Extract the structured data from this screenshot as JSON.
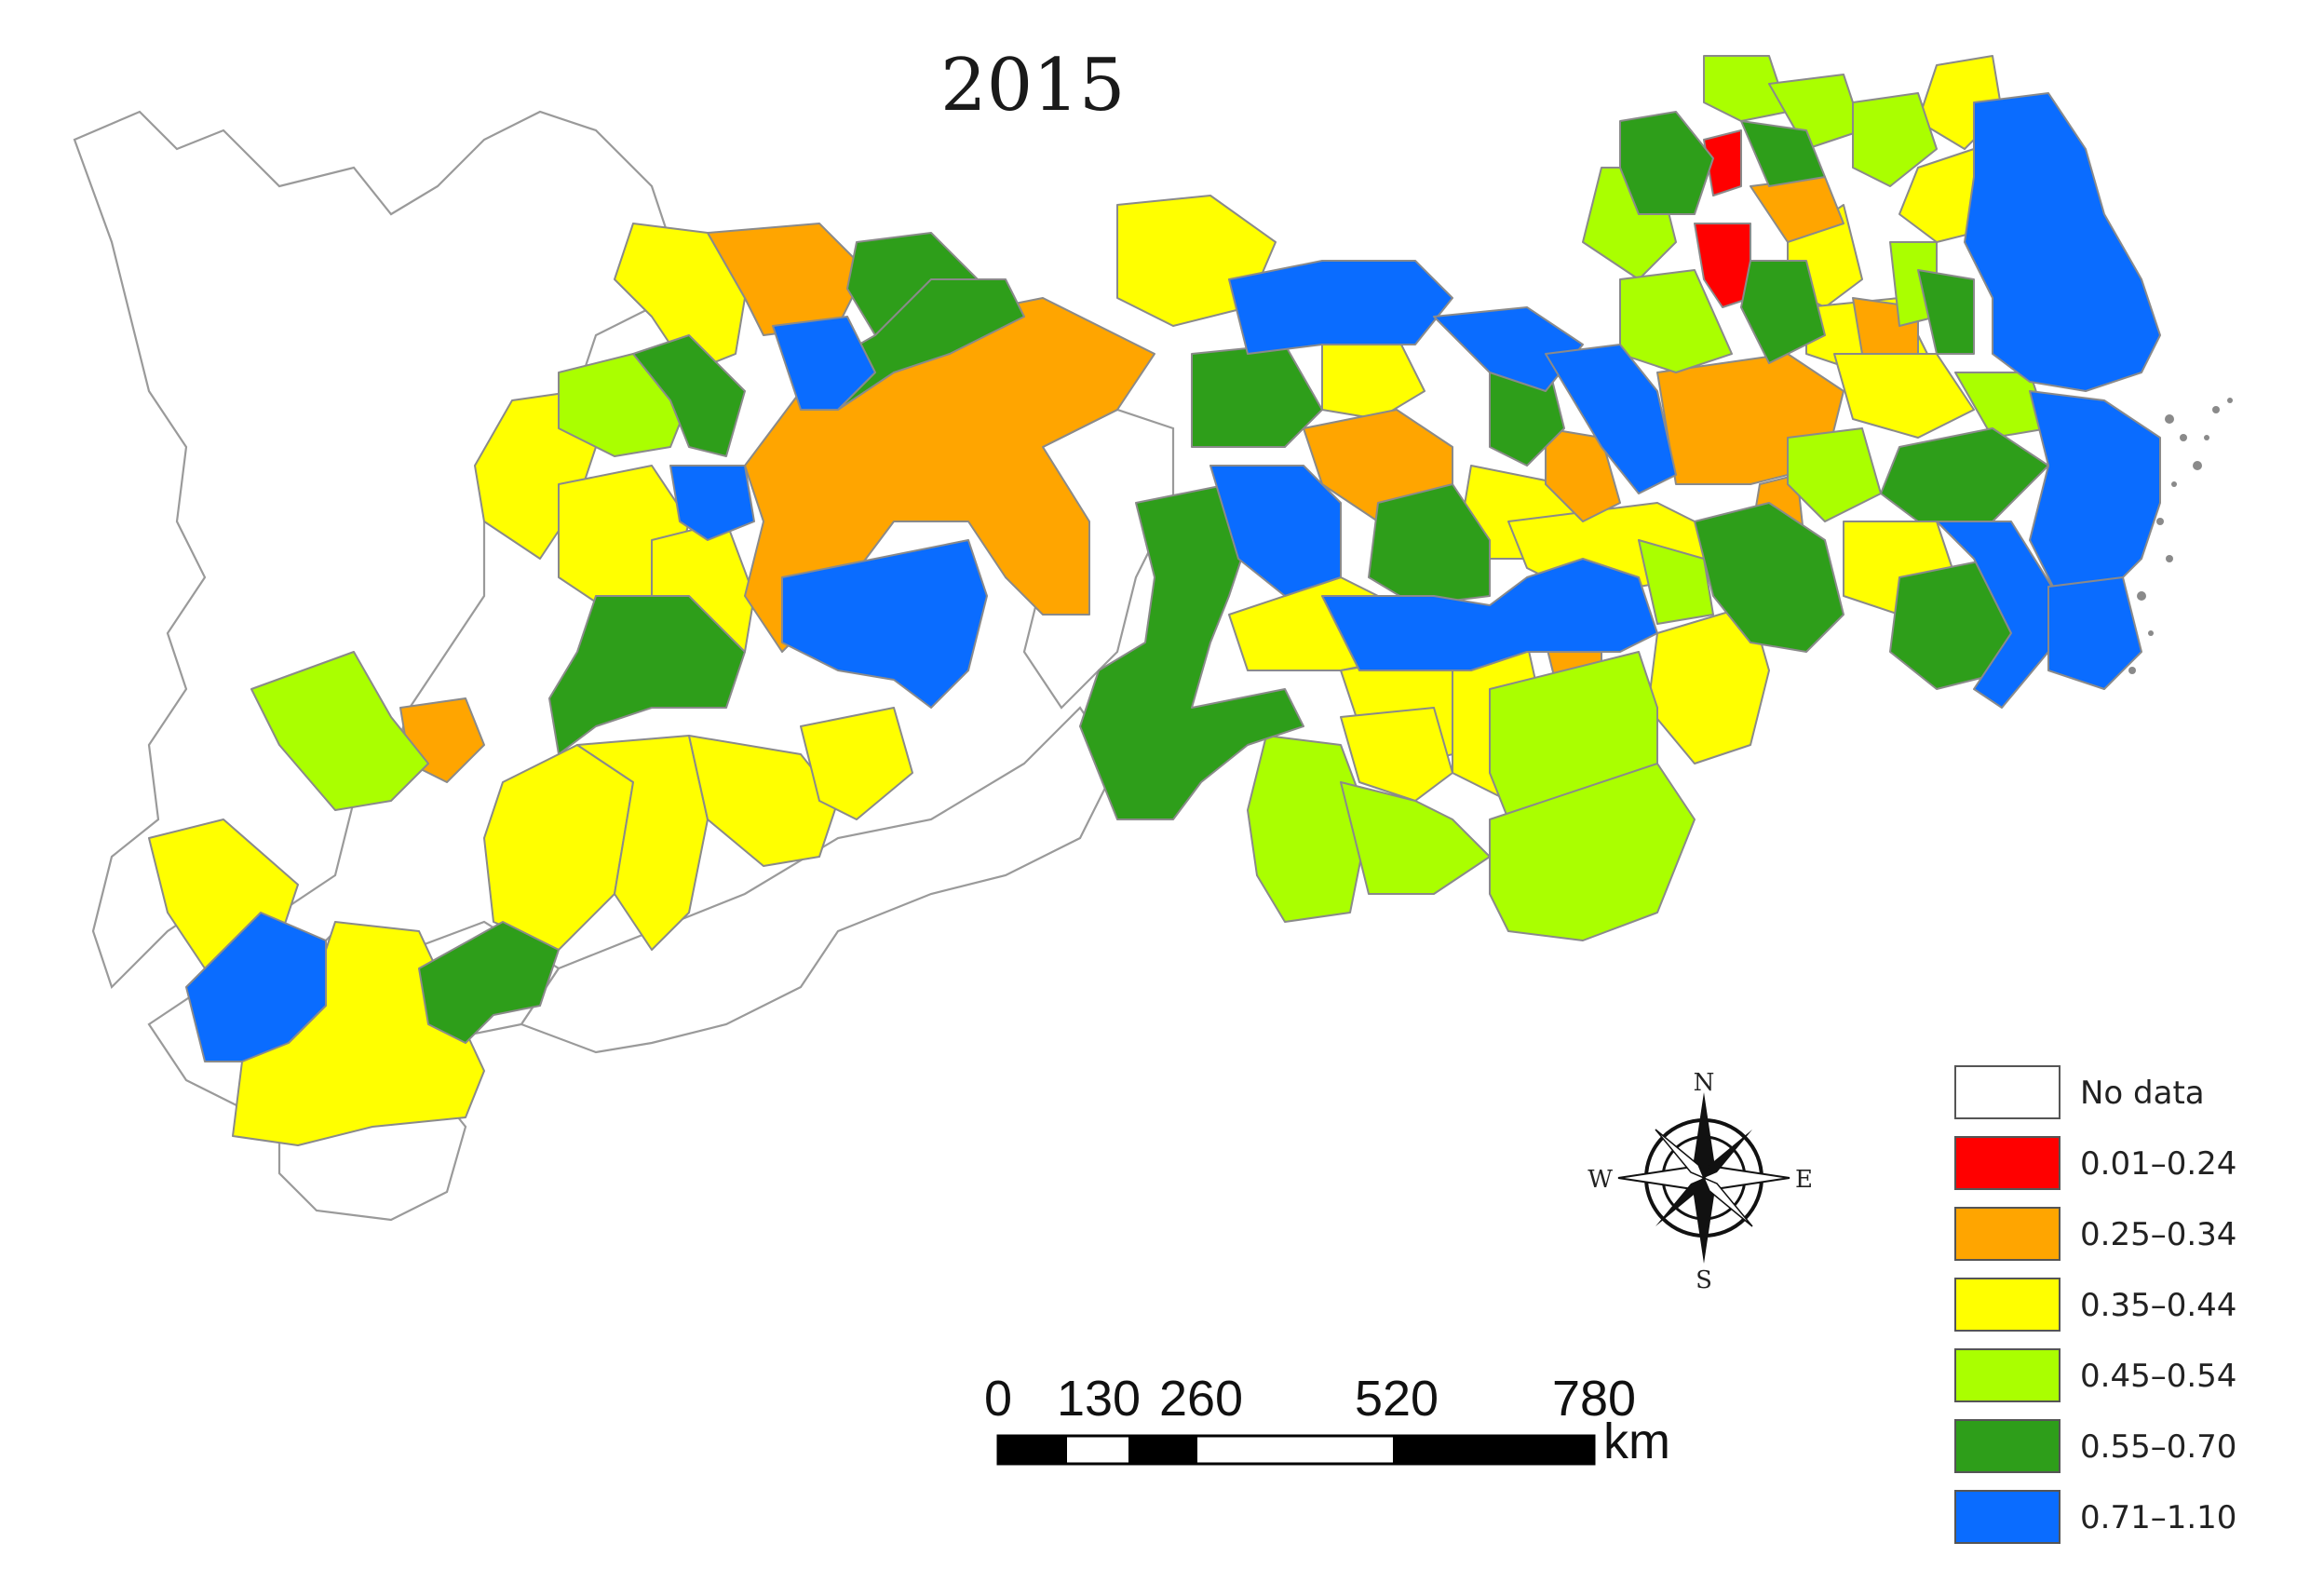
{
  "map": {
    "title": "2015",
    "legend": {
      "items": [
        {
          "label": "No data",
          "color": "#ffffff"
        },
        {
          "label": "0.01–0.24",
          "color": "#ff0000"
        },
        {
          "label": "0.25–0.34",
          "color": "#ffa500"
        },
        {
          "label": "0.35–0.44",
          "color": "#ffff00"
        },
        {
          "label": "0.45–0.54",
          "color": "#aaff00"
        },
        {
          "label": "0.55–0.70",
          "color": "#2e9e1a"
        },
        {
          "label": "0.71–1.10",
          "color": "#0a6cff"
        }
      ]
    },
    "scale_bar": {
      "ticks": [
        "0",
        "130",
        "260",
        "520",
        "780"
      ],
      "unit": "km"
    },
    "compass": {
      "n": "N",
      "s": "S",
      "e": "E",
      "w": "W"
    }
  }
}
